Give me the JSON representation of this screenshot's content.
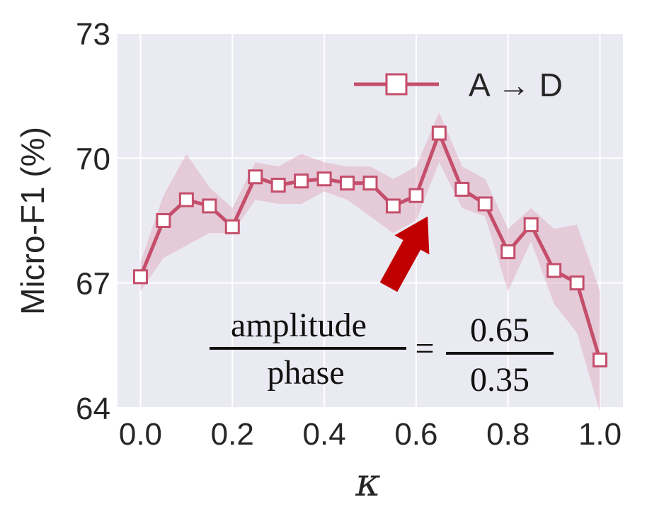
{
  "colors": {
    "background": "#eaeaf2",
    "grid": "#ffffff",
    "line": "#c44e6b",
    "band": "#e0a5b8",
    "arrow": "#c00000"
  },
  "chart_data": {
    "type": "line",
    "xlabel": "κ",
    "ylabel": "Micro-F1 (%)",
    "xlim": [
      -0.05,
      1.05
    ],
    "ylim": [
      64,
      73
    ],
    "xticks": [
      "0.0",
      "0.2",
      "0.4",
      "0.6",
      "0.8",
      "1.0"
    ],
    "yticks": [
      "64",
      "67",
      "70",
      "73"
    ],
    "grid": true,
    "legend_position": "top-right",
    "series": [
      {
        "name": "A → D",
        "marker": "square",
        "x": [
          0.0,
          0.05,
          0.1,
          0.15,
          0.2,
          0.25,
          0.3,
          0.35,
          0.4,
          0.45,
          0.5,
          0.55,
          0.6,
          0.65,
          0.7,
          0.75,
          0.8,
          0.85,
          0.9,
          0.95,
          1.0
        ],
        "y": [
          67.15,
          68.5,
          69.0,
          68.85,
          68.35,
          69.55,
          69.35,
          69.45,
          69.5,
          69.4,
          69.4,
          68.85,
          69.1,
          70.6,
          69.25,
          68.9,
          67.75,
          68.4,
          67.3,
          67.0,
          65.15
        ],
        "band_lower": [
          66.8,
          67.6,
          67.9,
          68.2,
          68.2,
          69.0,
          68.9,
          68.9,
          69.2,
          69.0,
          68.6,
          68.2,
          68.5,
          69.9,
          68.8,
          68.6,
          66.8,
          68.0,
          66.5,
          65.8,
          63.9
        ],
        "band_upper": [
          67.5,
          69.1,
          70.1,
          69.3,
          68.8,
          69.9,
          69.8,
          70.1,
          69.9,
          69.8,
          69.8,
          69.5,
          69.8,
          71.1,
          69.8,
          69.5,
          68.3,
          68.8,
          68.3,
          68.4,
          66.8
        ]
      }
    ],
    "annotations": {
      "arrow": {
        "from": [
          0.54,
          66.9
        ],
        "to": [
          0.625,
          68.6
        ]
      },
      "formula": {
        "left_numerator": "amplitude",
        "left_denominator": "phase",
        "equals": "=",
        "right_numerator": "0.65",
        "right_denominator": "0.35"
      }
    }
  }
}
